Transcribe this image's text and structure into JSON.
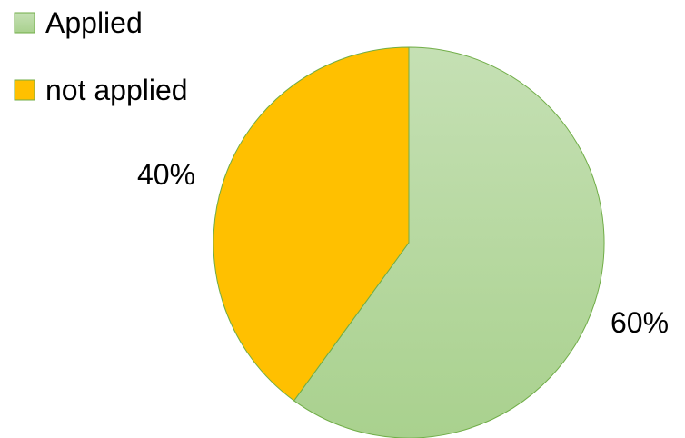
{
  "chart_data": {
    "type": "pie",
    "title": "",
    "categories": [
      "Applied",
      "not applied"
    ],
    "values": [
      60,
      40
    ],
    "value_labels": [
      "60%",
      "40%"
    ],
    "colors": [
      "#a9d18e",
      "#ffc000"
    ],
    "slice_stroke": "#70ad47",
    "legend": {
      "position": "top-left",
      "entries": [
        "Applied",
        "not applied"
      ]
    }
  }
}
